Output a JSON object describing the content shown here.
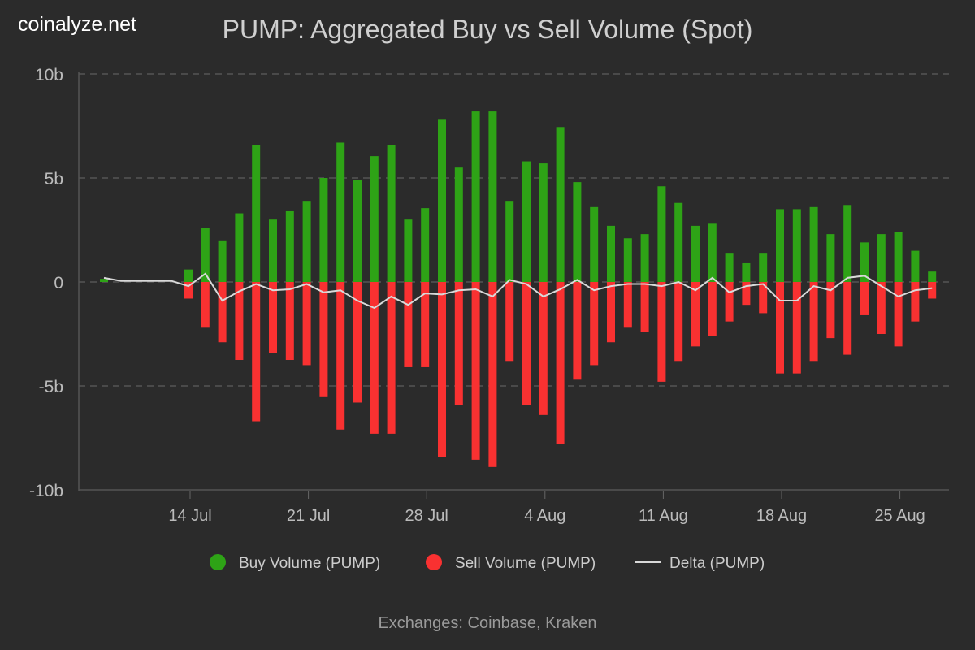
{
  "brand": "coinalyze.net",
  "footer": "Exchanges: Coinbase, Kraken",
  "chart_data": {
    "type": "bar",
    "title": "PUMP: Aggregated Buy vs Sell Volume (Spot)",
    "xlabel": "",
    "ylabel": "",
    "ylim": [
      -10,
      10
    ],
    "y_unit": "billion",
    "yticks": [
      {
        "v": 10,
        "label": "10b"
      },
      {
        "v": 5,
        "label": "5b"
      },
      {
        "v": 0,
        "label": "0"
      },
      {
        "v": -5,
        "label": "-5b"
      },
      {
        "v": -10,
        "label": "-10b"
      }
    ],
    "xticks": [
      {
        "day": 5,
        "label": "14 Jul"
      },
      {
        "day": 12,
        "label": "21 Jul"
      },
      {
        "day": 19,
        "label": "28 Jul"
      },
      {
        "day": 26,
        "label": "4 Aug"
      },
      {
        "day": 33,
        "label": "11 Aug"
      },
      {
        "day": 40,
        "label": "18 Aug"
      },
      {
        "day": 47,
        "label": "25 Aug"
      }
    ],
    "start_date": "9 Jul",
    "end_date": "27 Aug",
    "grid": true,
    "legend_position": "bottom",
    "series": [
      {
        "name": "Buy Volume (PUMP)",
        "color": "#2ea316",
        "values": [
          0.15,
          0,
          0,
          0,
          0,
          0.6,
          2.6,
          2.0,
          3.3,
          6.6,
          3.0,
          3.4,
          3.9,
          5.0,
          6.7,
          4.9,
          6.05,
          6.6,
          3.0,
          3.55,
          7.8,
          5.5,
          8.2,
          8.2,
          3.9,
          5.8,
          5.7,
          7.45,
          4.8,
          3.6,
          2.7,
          2.1,
          2.3,
          4.6,
          3.8,
          2.7,
          2.8,
          1.4,
          0.9,
          1.4,
          3.5,
          3.5,
          3.6,
          2.3,
          3.7,
          1.9,
          2.3,
          2.4,
          1.5,
          0.5
        ]
      },
      {
        "name": "Sell Volume (PUMP)",
        "color": "#f93131",
        "values": [
          0,
          0,
          0,
          0,
          0,
          -0.8,
          -2.2,
          -2.9,
          -3.75,
          -6.7,
          -3.4,
          -3.75,
          -4.0,
          -5.5,
          -7.1,
          -5.8,
          -7.3,
          -7.3,
          -4.1,
          -4.1,
          -8.4,
          -5.9,
          -8.55,
          -8.9,
          -3.8,
          -5.9,
          -6.4,
          -7.8,
          -4.7,
          -4.0,
          -2.9,
          -2.2,
          -2.4,
          -4.8,
          -3.8,
          -3.1,
          -2.6,
          -1.9,
          -1.1,
          -1.5,
          -4.4,
          -4.4,
          -3.8,
          -2.7,
          -3.5,
          -1.6,
          -2.5,
          -3.1,
          -1.9,
          -0.8
        ]
      },
      {
        "name": "Delta (PUMP)",
        "color": "#d9d9d9",
        "type": "line",
        "values": [
          0.2,
          0.05,
          0.05,
          0.05,
          0.05,
          -0.2,
          0.4,
          -0.9,
          -0.45,
          -0.1,
          -0.4,
          -0.35,
          -0.1,
          -0.5,
          -0.4,
          -0.9,
          -1.25,
          -0.7,
          -1.1,
          -0.55,
          -0.6,
          -0.4,
          -0.35,
          -0.7,
          0.1,
          -0.1,
          -0.7,
          -0.35,
          0.1,
          -0.4,
          -0.2,
          -0.1,
          -0.1,
          -0.2,
          0.0,
          -0.4,
          0.2,
          -0.5,
          -0.2,
          -0.1,
          -0.9,
          -0.9,
          -0.2,
          -0.4,
          0.2,
          0.3,
          -0.2,
          -0.7,
          -0.4,
          -0.3
        ]
      }
    ]
  }
}
